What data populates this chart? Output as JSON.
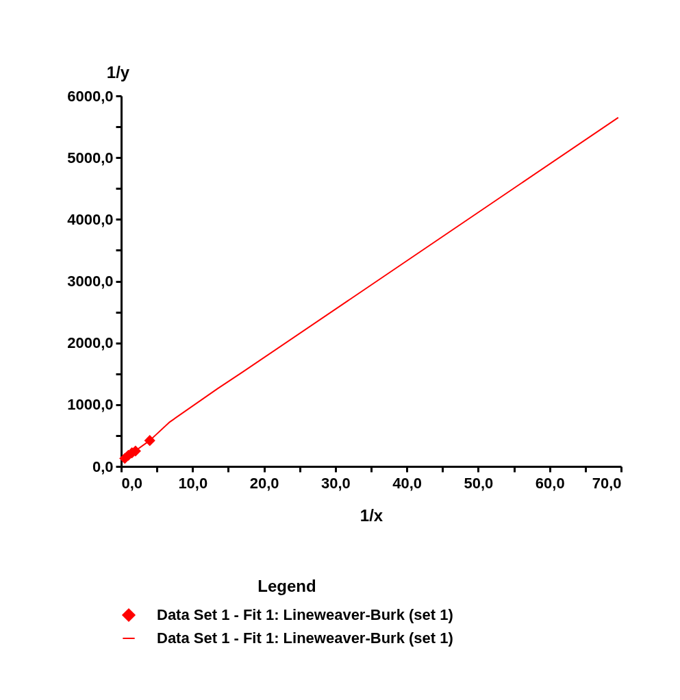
{
  "chart_data": {
    "type": "scatter",
    "xlabel": "1/x",
    "ylabel": "1/y",
    "legend_title": "Legend",
    "legend": "bottom",
    "xlim": [
      0,
      70
    ],
    "ylim": [
      0,
      6000
    ],
    "xticks": [
      {
        "value": 0,
        "label": "0,0"
      },
      {
        "value": 5,
        "label": null
      },
      {
        "value": 10,
        "label": "10,0"
      },
      {
        "value": 15,
        "label": null
      },
      {
        "value": 20,
        "label": "20,0"
      },
      {
        "value": 25,
        "label": null
      },
      {
        "value": 30,
        "label": "30,0"
      },
      {
        "value": 35,
        "label": null
      },
      {
        "value": 40,
        "label": "40,0"
      },
      {
        "value": 45,
        "label": null
      },
      {
        "value": 50,
        "label": "50,0"
      },
      {
        "value": 55,
        "label": null
      },
      {
        "value": 60,
        "label": "60,0"
      },
      {
        "value": 65,
        "label": null
      },
      {
        "value": 70,
        "label": "70,0"
      }
    ],
    "yticks": [
      {
        "value": 0,
        "label": "0,0"
      },
      {
        "value": 500,
        "label": null
      },
      {
        "value": 1000,
        "label": "1000,0"
      },
      {
        "value": 1500,
        "label": null
      },
      {
        "value": 2000,
        "label": "2000,0"
      },
      {
        "value": 2500,
        "label": null
      },
      {
        "value": 3000,
        "label": "3000,0"
      },
      {
        "value": 3500,
        "label": null
      },
      {
        "value": 4000,
        "label": "4000,0"
      },
      {
        "value": 4500,
        "label": null
      },
      {
        "value": 5000,
        "label": "5000,0"
      },
      {
        "value": 5500,
        "label": null
      },
      {
        "value": 6000,
        "label": "6000,0"
      }
    ],
    "series": [
      {
        "name": "Data Set 1 - Fit 1: Lineweaver-Burk (set 1)",
        "color": "#ff0000",
        "marker": "diamond",
        "x": [
          0.5,
          1.0,
          1.5,
          2.0,
          4.0
        ],
        "values": [
          130,
          180,
          220,
          250,
          420
        ]
      },
      {
        "name": "Data Set 1 - Fit 1: Lineweaver-Burk (set 1)",
        "type": "line",
        "marker": "none",
        "color": "#ff0000",
        "x": [
          0.5,
          4.0,
          6.8,
          13.5,
          16.9,
          69.6
        ],
        "values": [
          130,
          420,
          720,
          1260,
          1520,
          5650
        ]
      }
    ]
  }
}
